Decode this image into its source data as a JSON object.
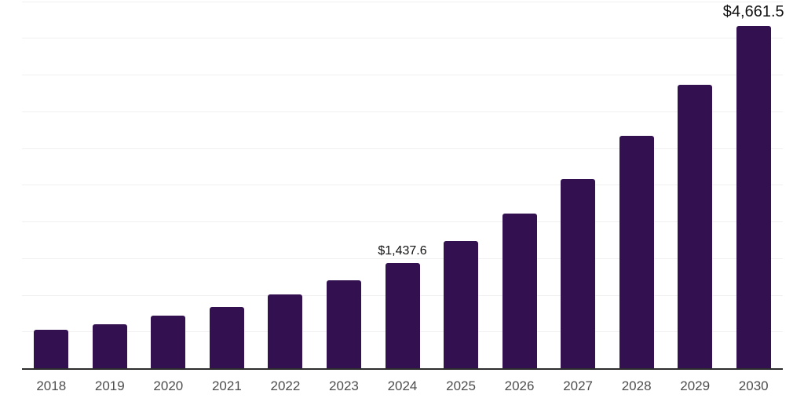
{
  "chart_data": {
    "type": "bar",
    "categories": [
      "2018",
      "2019",
      "2020",
      "2021",
      "2022",
      "2023",
      "2024",
      "2025",
      "2026",
      "2027",
      "2028",
      "2029",
      "2030"
    ],
    "values": [
      520,
      603,
      716,
      834,
      1002,
      1202,
      1437.6,
      1737,
      2111,
      2582,
      3170,
      3858,
      4661.5
    ],
    "value_labels": [
      {
        "category": "2024",
        "text": "$1,437.6",
        "emphasized": false
      },
      {
        "category": "2030",
        "text": "$4,661.5",
        "emphasized": true
      }
    ],
    "xlabel": "",
    "ylabel": "",
    "ylim": [
      0,
      5000
    ],
    "gridline_step": 500,
    "grid": "horizontal-only",
    "legend_position": "none",
    "y_axis_tick_labels_visible": false
  },
  "colors": {
    "bar_fill": "#331050",
    "gridline": "#f0f0f0",
    "axis_line": "#2d2d2d",
    "tick_label": "#4d4d4d",
    "value_label": "#111111",
    "background": "#ffffff"
  }
}
